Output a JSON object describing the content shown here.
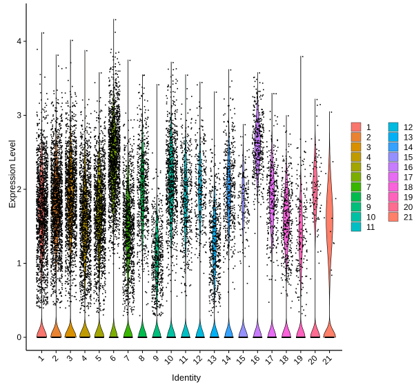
{
  "chart_data": {
    "type": "violin",
    "title": "",
    "xlabel": "Identity",
    "ylabel": "Expression Level",
    "ylim": [
      -0.2,
      4.4
    ],
    "y_ticks": [
      0,
      1,
      2,
      3,
      4
    ],
    "grid": false,
    "legend_position": "right",
    "categories": [
      "1",
      "2",
      "3",
      "4",
      "5",
      "6",
      "7",
      "8",
      "9",
      "10",
      "11",
      "12",
      "13",
      "14",
      "15",
      "16",
      "17",
      "18",
      "19",
      "20",
      "21"
    ],
    "colors": [
      "#F8766D",
      "#EA8331",
      "#D89000",
      "#C09B00",
      "#A3A500",
      "#7CAE00",
      "#39B600",
      "#00BB4E",
      "#00BF7D",
      "#00C1A3",
      "#00BFC4",
      "#00BAE0",
      "#00B0F6",
      "#35A2FF",
      "#9590FF",
      "#C77CFF",
      "#E76BF3",
      "#FA62DB",
      "#FF62BC",
      "#FF6C91",
      "#FF7F69"
    ],
    "series": [
      {
        "name": "1",
        "max": 4.12,
        "upper_min": 0.4,
        "upper_center": 1.7,
        "upper_spread": 1.05,
        "upper_width": 0.9,
        "zero_width": 0.75,
        "dots": 1500
      },
      {
        "name": "2",
        "max": 3.82,
        "upper_min": 0.4,
        "upper_center": 1.8,
        "upper_spread": 1.0,
        "upper_width": 1.0,
        "zero_width": 0.8,
        "dots": 1700
      },
      {
        "name": "3",
        "max": 4.02,
        "upper_min": 0.4,
        "upper_center": 1.9,
        "upper_spread": 1.0,
        "upper_width": 0.85,
        "zero_width": 0.85,
        "dots": 1400
      },
      {
        "name": "4",
        "max": 3.88,
        "upper_min": 0.3,
        "upper_center": 1.6,
        "upper_spread": 1.05,
        "upper_width": 0.8,
        "zero_width": 0.8,
        "dots": 1300
      },
      {
        "name": "5",
        "max": 3.58,
        "upper_min": 0.3,
        "upper_center": 1.7,
        "upper_spread": 1.0,
        "upper_width": 0.8,
        "zero_width": 0.7,
        "dots": 1300
      },
      {
        "name": "6",
        "max": 4.3,
        "upper_min": 0.4,
        "upper_center": 2.4,
        "upper_spread": 0.95,
        "upper_width": 0.95,
        "zero_width": 0.55,
        "dots": 1500
      },
      {
        "name": "7",
        "max": 3.75,
        "upper_min": 0.3,
        "upper_center": 1.5,
        "upper_spread": 1.0,
        "upper_width": 0.7,
        "zero_width": 0.65,
        "dots": 1000
      },
      {
        "name": "8",
        "max": 3.55,
        "upper_min": 0.3,
        "upper_center": 2.0,
        "upper_spread": 1.0,
        "upper_width": 0.55,
        "zero_width": 0.6,
        "dots": 600
      },
      {
        "name": "9",
        "max": 3.42,
        "upper_min": 0.3,
        "upper_center": 1.1,
        "upper_spread": 0.8,
        "upper_width": 0.55,
        "zero_width": 0.6,
        "dots": 500
      },
      {
        "name": "10",
        "max": 3.72,
        "upper_min": 0.3,
        "upper_center": 2.1,
        "upper_spread": 1.0,
        "upper_width": 0.75,
        "zero_width": 0.6,
        "dots": 800
      },
      {
        "name": "11",
        "max": 3.55,
        "upper_min": 0.3,
        "upper_center": 1.9,
        "upper_spread": 1.0,
        "upper_width": 0.5,
        "zero_width": 0.6,
        "dots": 450
      },
      {
        "name": "12",
        "max": 3.45,
        "upper_min": 0.3,
        "upper_center": 2.0,
        "upper_spread": 0.85,
        "upper_width": 0.45,
        "zero_width": 0.6,
        "dots": 300
      },
      {
        "name": "13",
        "max": 3.32,
        "upper_min": 0.3,
        "upper_center": 1.3,
        "upper_spread": 0.9,
        "upper_width": 0.55,
        "zero_width": 0.6,
        "dots": 500
      },
      {
        "name": "14",
        "max": 3.62,
        "upper_min": 0.3,
        "upper_center": 2.0,
        "upper_spread": 0.9,
        "upper_width": 0.55,
        "zero_width": 0.6,
        "dots": 450
      },
      {
        "name": "15",
        "max": 2.88,
        "upper_min": 0.3,
        "upper_center": 1.9,
        "upper_spread": 0.75,
        "upper_width": 0.35,
        "zero_width": 0.65,
        "dots": 150
      },
      {
        "name": "16",
        "max": 3.58,
        "upper_min": 1.1,
        "upper_center": 2.6,
        "upper_spread": 0.7,
        "upper_width": 0.85,
        "zero_width": 0.6,
        "dots": 350
      },
      {
        "name": "17",
        "max": 3.3,
        "upper_min": 0.4,
        "upper_center": 1.9,
        "upper_spread": 0.85,
        "upper_width": 0.75,
        "zero_width": 0.6,
        "dots": 300
      },
      {
        "name": "18",
        "max": 3.0,
        "upper_min": 0.3,
        "upper_center": 1.6,
        "upper_spread": 0.8,
        "upper_width": 0.9,
        "zero_width": 0.65,
        "dots": 350
      },
      {
        "name": "19",
        "max": 3.8,
        "upper_min": 0.3,
        "upper_center": 1.4,
        "upper_spread": 0.9,
        "upper_width": 0.55,
        "zero_width": 0.65,
        "dots": 180
      },
      {
        "name": "20",
        "max": 3.22,
        "upper_min": 0.4,
        "upper_center": 2.0,
        "upper_spread": 0.75,
        "upper_width": 0.65,
        "zero_width": 0.7,
        "dots": 90
      },
      {
        "name": "21",
        "max": 3.05,
        "upper_min": 0.1,
        "upper_center": 1.6,
        "upper_spread": 1.0,
        "upper_width": 1.0,
        "zero_width": 0.9,
        "dots": 10
      }
    ]
  }
}
